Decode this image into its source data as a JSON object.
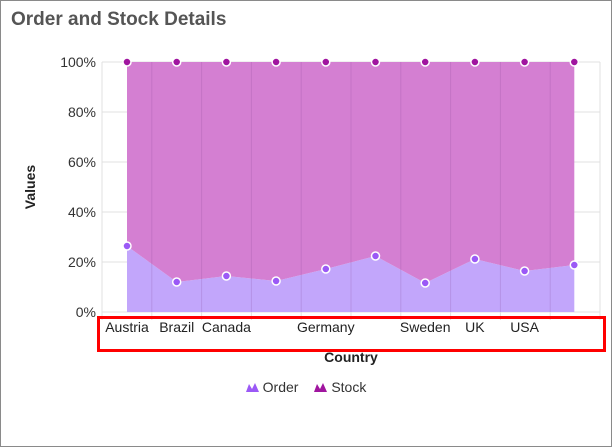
{
  "chart_data": {
    "type": "area",
    "stacking": "100%",
    "title": "Order and Stock Details",
    "xlabel": "Country",
    "ylabel": "Values",
    "categories": [
      "Austria",
      "Brazil",
      "Canada",
      "",
      "Germany",
      "",
      "Sweden",
      "UK",
      "USA",
      ""
    ],
    "yticks": [
      "0%",
      "20%",
      "40%",
      "60%",
      "80%",
      "100%"
    ],
    "ylim": [
      0,
      100
    ],
    "grid": true,
    "legend_position": "bottom",
    "series": [
      {
        "name": "Order",
        "color": "#9b59f6",
        "fill": "#c2a6fb",
        "percent": [
          26.4,
          12,
          14.4,
          12.4,
          17.2,
          22.4,
          11.6,
          21.2,
          16.4,
          18.8
        ]
      },
      {
        "name": "Stock",
        "color": "#a0159f",
        "fill": "#d47fd2",
        "percent": [
          73.6,
          88,
          85.6,
          87.6,
          82.8,
          77.6,
          88.4,
          78.8,
          83.6,
          81.2
        ]
      }
    ],
    "highlight_color": "#ff0000"
  }
}
